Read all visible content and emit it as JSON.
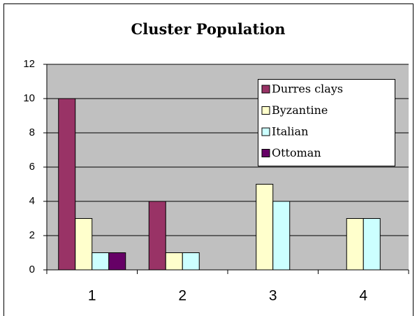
{
  "chart_data": {
    "type": "bar",
    "title": "Cluster Population",
    "categories": [
      "1",
      "2",
      "3",
      "4"
    ],
    "series": [
      {
        "name": "Durres clays",
        "color": "#993366",
        "values": [
          10,
          4,
          0,
          0
        ]
      },
      {
        "name": "Byzantine",
        "color": "#ffffcc",
        "values": [
          3,
          1,
          5,
          3
        ]
      },
      {
        "name": "Italian",
        "color": "#ccffff",
        "values": [
          1,
          1,
          4,
          3
        ]
      },
      {
        "name": "Ottoman",
        "color": "#660066",
        "values": [
          1,
          0,
          0,
          0
        ]
      }
    ],
    "ylim": [
      0,
      12
    ],
    "yticks": [
      0,
      2,
      4,
      6,
      8,
      10,
      12
    ],
    "grid": true
  }
}
